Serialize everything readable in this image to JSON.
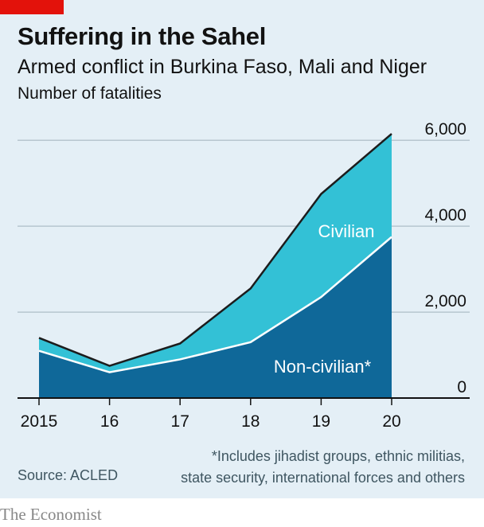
{
  "header": {
    "title": "Suffering in the Sahel",
    "subtitle": "Armed conflict in Burkina Faso, Mali and Niger",
    "unit": "Number of fatalities"
  },
  "chart_data": {
    "type": "area",
    "stacked": true,
    "x": [
      "2015",
      "16",
      "17",
      "18",
      "19",
      "20"
    ],
    "series": [
      {
        "name": "Non-civilian*",
        "values": [
          1100,
          600,
          900,
          1300,
          2350,
          3750
        ]
      },
      {
        "name": "Civilian",
        "values": [
          300,
          150,
          370,
          1250,
          2400,
          2400
        ]
      }
    ],
    "totals": [
      1400,
      750,
      1270,
      2550,
      4750,
      6150
    ],
    "ylim": [
      0,
      6300
    ],
    "yticks": [
      0,
      2000,
      4000,
      6000
    ],
    "ytick_labels": [
      "0",
      "2,000",
      "4,000",
      "6,000"
    ],
    "y_axis_position": "right",
    "grid": true,
    "colors": {
      "Non-civilian*": "#0f6899",
      "Civilian": "#33c1d6",
      "total_line": "#1c1c1c",
      "background": "#e4eff6",
      "accent": "#e3120b"
    }
  },
  "footer": {
    "footnote_line1": "*Includes jihadist groups, ethnic militias,",
    "footnote_line2": "state security, international forces and others",
    "source": "Source: ACLED",
    "brand": "The Economist"
  }
}
